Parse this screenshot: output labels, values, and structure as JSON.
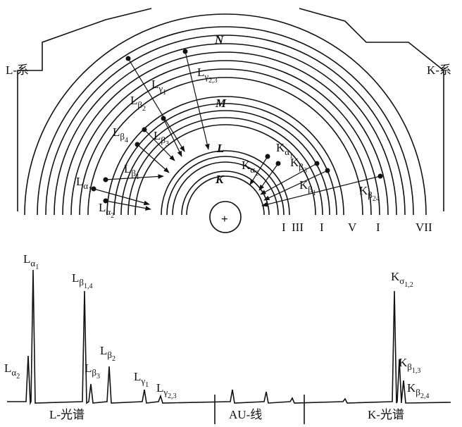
{
  "diagram": {
    "series_labels": {
      "l_series": "L-系",
      "k_series": "K-系"
    },
    "shells": [
      "N",
      "M",
      "L",
      "K"
    ],
    "nucleus": "+",
    "transition_labels": [
      {
        "base": "L",
        "sub": "γ",
        "index": "1"
      },
      {
        "base": "L",
        "sub": "γ",
        "index": "2,3"
      },
      {
        "base": "L",
        "sub": "β",
        "index": "2"
      },
      {
        "base": "L",
        "sub": "β",
        "index": "4"
      },
      {
        "base": "L",
        "sub": "β",
        "index": "3"
      },
      {
        "base": "L",
        "sub": "β",
        "index": "1"
      },
      {
        "base": "L",
        "sub": "α",
        "index": "1"
      },
      {
        "base": "L",
        "sub": "α",
        "index": "2"
      },
      {
        "base": "K",
        "sub": "α",
        "index": "1"
      },
      {
        "base": "K",
        "sub": "α",
        "index": "2"
      },
      {
        "base": "K",
        "sub": "β",
        "index": "3"
      },
      {
        "base": "K",
        "sub": "β",
        "index": "1"
      },
      {
        "base": "K",
        "sub": "β",
        "index": "24"
      }
    ],
    "shell_numerals": [
      "I",
      "III",
      "I",
      "V",
      "I",
      "VII"
    ],
    "spectrum": {
      "peak_labels": [
        {
          "base": "L",
          "sub": "α",
          "index": "1"
        },
        {
          "base": "L",
          "sub": "β",
          "index": "1,4"
        },
        {
          "base": "L",
          "sub": "α",
          "index": "2"
        },
        {
          "base": "L",
          "sub": "β",
          "index": "2"
        },
        {
          "base": "L",
          "sub": "β",
          "index": "3"
        },
        {
          "base": "L",
          "sub": "γ",
          "index": "1"
        },
        {
          "base": "L",
          "sub": "γ",
          "index": "2,3"
        },
        {
          "base": "K",
          "sub": "σ",
          "index": "1,2"
        },
        {
          "base": "K",
          "sub": "β",
          "index": "1,3"
        },
        {
          "base": "K",
          "sub": "β",
          "index": "2,4"
        }
      ],
      "regions": [
        "L-光谱",
        "AU-线",
        "K-光谱"
      ]
    }
  }
}
